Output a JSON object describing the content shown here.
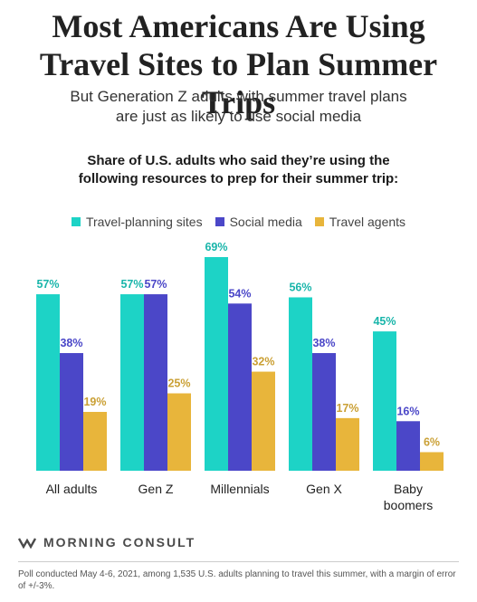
{
  "title_line1": "Most Americans Are Using",
  "title_line2": "Travel Sites to Plan Summer Trips",
  "subtitle_line1": "But Generation Z adults with summer travel plans",
  "subtitle_line2": "are just as likely to use social media",
  "heading_line1": "Share of U.S. adults who said they’re using the",
  "heading_line2": "following resources to prep for their summer trip:",
  "brand": "MORNING CONSULT",
  "footnote": "Poll conducted May 4-6, 2021, among 1,535 U.S. adults planning to travel this summer, with a margin of error of +/-3%.",
  "chart_data": {
    "type": "bar",
    "categories": [
      "All adults",
      "Gen Z",
      "Millennials",
      "Gen X",
      "Baby boomers"
    ],
    "series": [
      {
        "name": "Travel-planning sites",
        "color": "#1dd3c6",
        "label_color": "#19b5aa",
        "values": [
          57,
          57,
          69,
          56,
          45
        ]
      },
      {
        "name": "Social media",
        "color": "#4b47c8",
        "label_color": "#4b47c8",
        "values": [
          38,
          57,
          54,
          38,
          16
        ]
      },
      {
        "name": "Travel agents",
        "color": "#e8b53b",
        "label_color": "#caa035",
        "values": [
          19,
          25,
          32,
          17,
          6
        ]
      }
    ],
    "value_suffix": "%",
    "ylim": [
      0,
      69
    ],
    "grid": false,
    "legend": "top"
  }
}
